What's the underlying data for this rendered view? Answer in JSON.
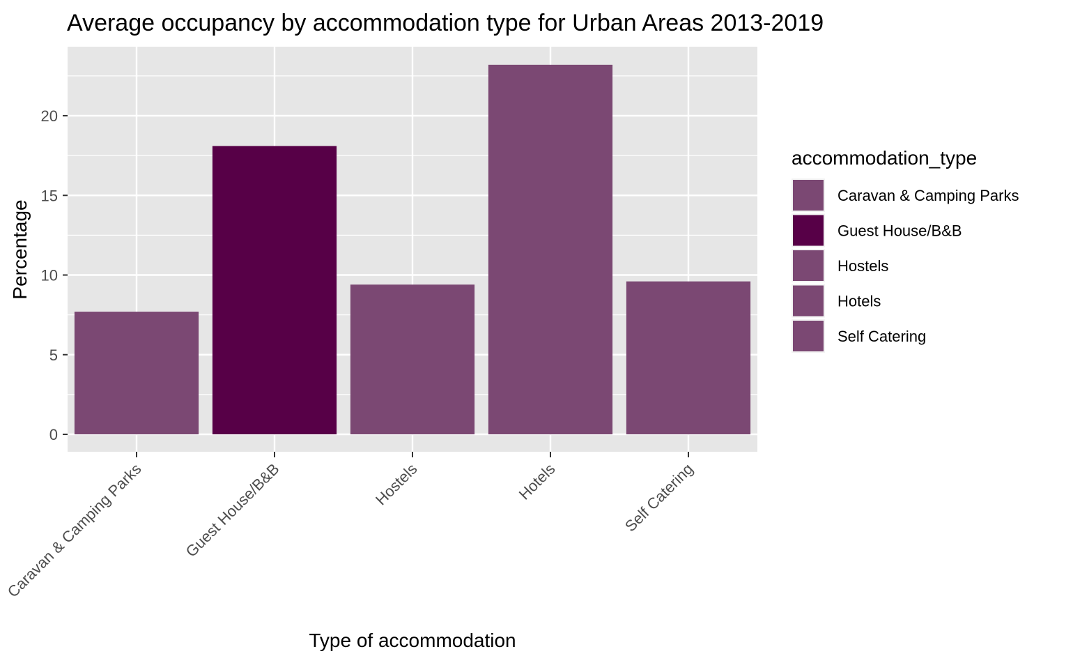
{
  "chart_data": {
    "type": "bar",
    "title": "Average occupancy by accommodation type for Urban Areas 2013-2019",
    "xlabel": "Type of accommodation",
    "ylabel": "Percentage",
    "categories": [
      "Caravan & Camping Parks",
      "Guest House/B&B",
      "Hostels",
      "Hotels",
      "Self Catering"
    ],
    "values": [
      7.7,
      18.1,
      9.4,
      23.2,
      9.6
    ],
    "ylim": [
      0,
      24.3
    ],
    "yticks": [
      "0",
      "5",
      "10",
      "15",
      "20"
    ],
    "grid": true,
    "legend": {
      "title": "accommodation_type",
      "placement": "right",
      "entries": [
        "Caravan & Camping Parks",
        "Guest House/B&B",
        "Hostels",
        "Hotels",
        "Self Catering"
      ]
    },
    "colors": {
      "default_bar": "#7b4873",
      "highlight_bar": "#570047",
      "panel_background": "#e6e6e6",
      "gridline": "#ffffff"
    },
    "bar_colors": [
      "#7b4873",
      "#570047",
      "#7b4873",
      "#7b4873",
      "#7b4873"
    ]
  }
}
